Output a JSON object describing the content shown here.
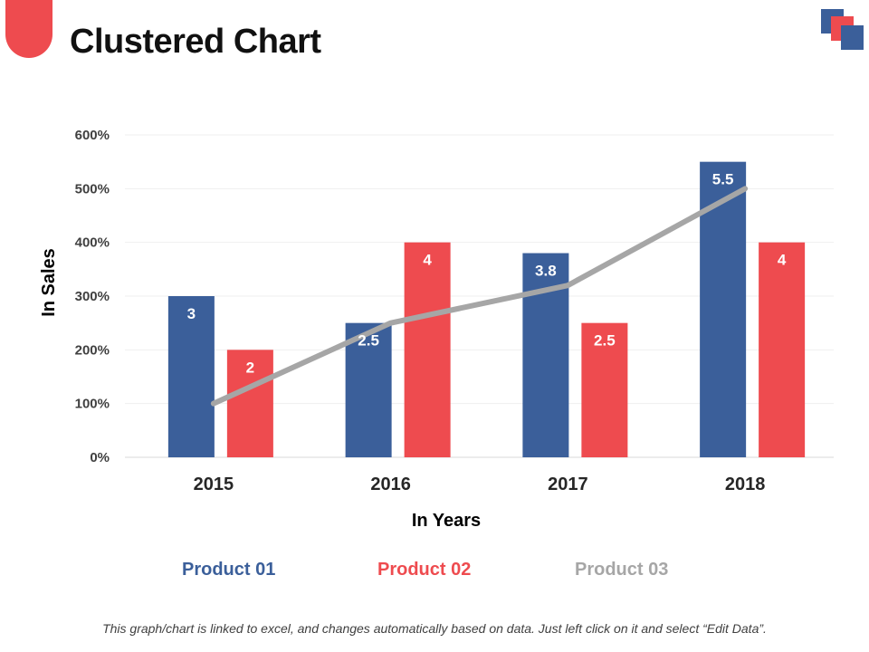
{
  "title": "Clustered Chart",
  "colors": {
    "product01": "#3B5F9A",
    "product02": "#EE4B4F",
    "product03": "#A6A6A6",
    "accent": "#EE4B4F"
  },
  "footer": "This graph/chart is linked to excel, and changes automatically based on data.  Just left click on it and select “Edit Data”.",
  "chart_data": {
    "type": "bar",
    "title": "Clustered Chart",
    "xlabel": "In Years",
    "ylabel": "In Sales",
    "categories": [
      "2015",
      "2016",
      "2017",
      "2018"
    ],
    "ylim": [
      0,
      6
    ],
    "yticks": [
      0,
      1,
      2,
      3,
      4,
      5,
      6
    ],
    "ytick_labels": [
      "0%",
      "100%",
      "200%",
      "300%",
      "400%",
      "500%",
      "600%"
    ],
    "grid": true,
    "legend_position": "bottom",
    "series": [
      {
        "name": "Product 01",
        "type": "bar",
        "values": [
          3,
          2.5,
          3.8,
          5.5
        ],
        "labels": [
          "3",
          "2.5",
          "3.8",
          "5.5"
        ]
      },
      {
        "name": "Product 02",
        "type": "bar",
        "values": [
          2,
          4,
          2.5,
          4
        ],
        "labels": [
          "2",
          "4",
          "2.5",
          "4"
        ]
      },
      {
        "name": "Product 03",
        "type": "line",
        "values": [
          1,
          2.5,
          3.2,
          5
        ]
      }
    ]
  }
}
